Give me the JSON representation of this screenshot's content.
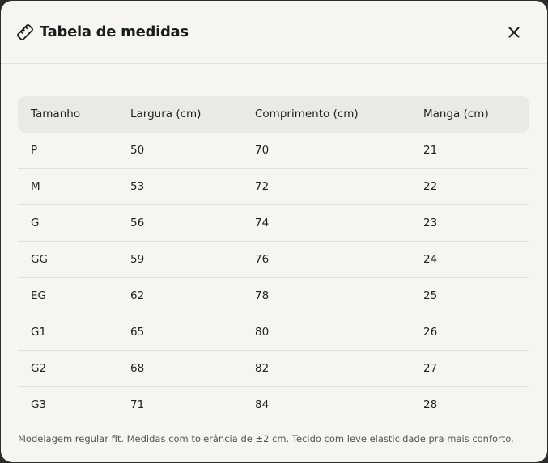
{
  "header": {
    "title": "Tabela de medidas"
  },
  "table": {
    "columns": [
      "Tamanho",
      "Largura (cm)",
      "Comprimento (cm)",
      "Manga (cm)"
    ],
    "rows": [
      [
        "P",
        50,
        70,
        21
      ],
      [
        "M",
        53,
        72,
        22
      ],
      [
        "G",
        56,
        74,
        23
      ],
      [
        "GG",
        59,
        76,
        24
      ],
      [
        "EG",
        62,
        78,
        25
      ],
      [
        "G1",
        65,
        80,
        26
      ],
      [
        "G2",
        68,
        82,
        27
      ],
      [
        "G3",
        71,
        84,
        28
      ]
    ]
  },
  "footnote": "Modelagem regular fit. Medidas com tolerância de ±2 cm. Tecido com leve elasticidade pra mais conforto."
}
